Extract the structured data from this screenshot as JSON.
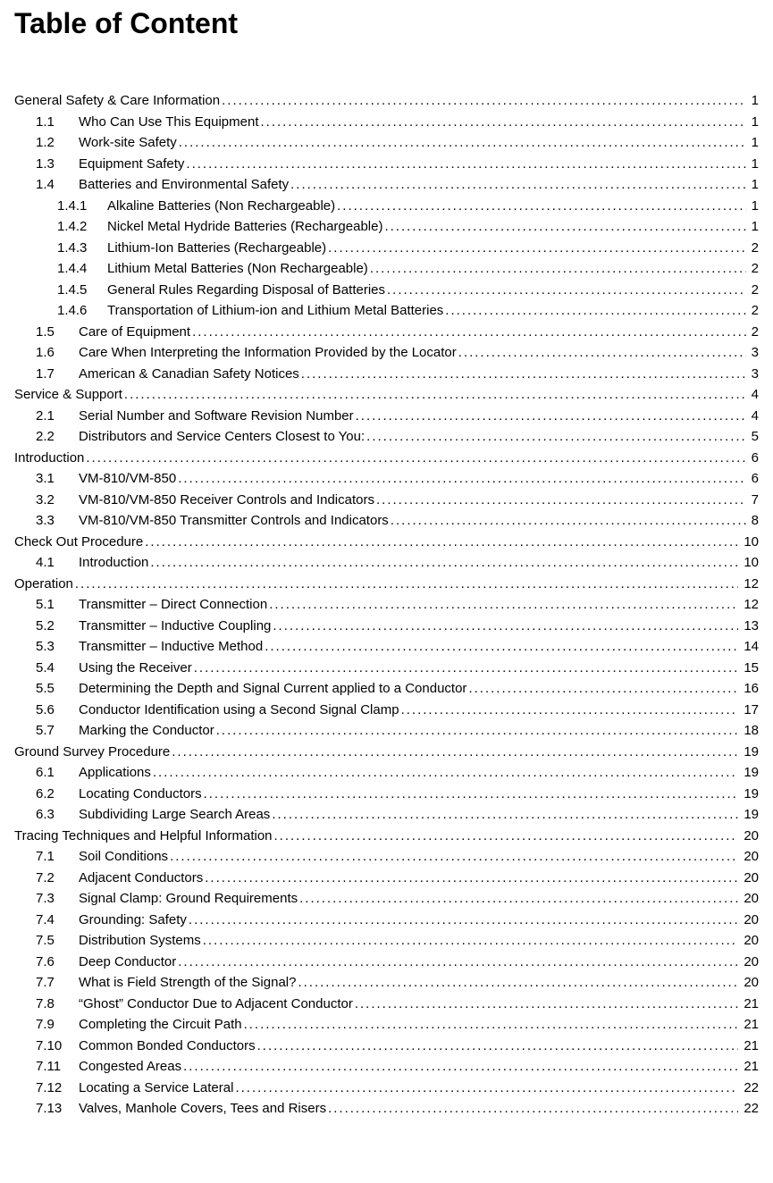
{
  "title": "Table of Content",
  "entries": [
    {
      "level": 0,
      "num": "",
      "label": "General Safety & Care Information",
      "page": "1"
    },
    {
      "level": 1,
      "num": "1.1",
      "label": "Who Can Use This Equipment",
      "page": "1"
    },
    {
      "level": 1,
      "num": "1.2",
      "label": "Work-site Safety",
      "page": "1"
    },
    {
      "level": 1,
      "num": "1.3",
      "label": "Equipment Safety",
      "page": "1"
    },
    {
      "level": 1,
      "num": "1.4",
      "label": "Batteries and Environmental Safety",
      "page": "1"
    },
    {
      "level": 2,
      "num": "1.4.1",
      "label": "Alkaline Batteries (Non Rechargeable)",
      "page": "1"
    },
    {
      "level": 2,
      "num": "1.4.2",
      "label": "Nickel Metal Hydride Batteries (Rechargeable)",
      "page": "1"
    },
    {
      "level": 2,
      "num": "1.4.3",
      "label": "Lithium-Ion Batteries (Rechargeable)",
      "page": "2"
    },
    {
      "level": 2,
      "num": "1.4.4",
      "label": "Lithium Metal Batteries (Non Rechargeable)",
      "page": "2"
    },
    {
      "level": 2,
      "num": "1.4.5",
      "label": "General Rules Regarding Disposal of Batteries",
      "page": "2"
    },
    {
      "level": 2,
      "num": "1.4.6",
      "label": "Transportation of Lithium-ion and Lithium Metal Batteries",
      "page": "2"
    },
    {
      "level": 1,
      "num": "1.5",
      "label": "Care of Equipment",
      "page": "2"
    },
    {
      "level": 1,
      "num": "1.6",
      "label": "Care When Interpreting the Information Provided by the Locator",
      "page": "3"
    },
    {
      "level": 1,
      "num": "1.7",
      "label": "American & Canadian Safety Notices",
      "page": "3"
    },
    {
      "level": 0,
      "num": "",
      "label": "Service & Support",
      "page": "4"
    },
    {
      "level": 1,
      "num": "2.1",
      "label": "Serial Number and Software Revision Number",
      "page": "4"
    },
    {
      "level": 1,
      "num": "2.2",
      "label": "Distributors and Service Centers Closest to You:",
      "page": "5"
    },
    {
      "level": 0,
      "num": "",
      "label": "Introduction",
      "page": "6"
    },
    {
      "level": 1,
      "num": "3.1",
      "label": "VM-810/VM-850",
      "page": "6"
    },
    {
      "level": 1,
      "num": "3.2",
      "label": "VM-810/VM-850 Receiver Controls and Indicators",
      "page": "7"
    },
    {
      "level": 1,
      "num": "3.3",
      "label": "VM-810/VM-850 Transmitter Controls and Indicators",
      "page": "8"
    },
    {
      "level": 0,
      "num": "",
      "label": "Check Out Procedure",
      "page": "10"
    },
    {
      "level": 1,
      "num": "4.1",
      "label": "Introduction",
      "page": "10"
    },
    {
      "level": 0,
      "num": "",
      "label": "Operation",
      "page": "12"
    },
    {
      "level": 1,
      "num": "5.1",
      "label": "Transmitter – Direct Connection",
      "page": "12"
    },
    {
      "level": 1,
      "num": "5.2",
      "label": "Transmitter – Inductive Coupling",
      "page": "13"
    },
    {
      "level": 1,
      "num": "5.3",
      "label": "Transmitter – Inductive Method",
      "page": "14"
    },
    {
      "level": 1,
      "num": "5.4",
      "label": "Using the Receiver",
      "page": "15"
    },
    {
      "level": 1,
      "num": "5.5",
      "label": "Determining the Depth and Signal Current applied to a Conductor",
      "page": "16"
    },
    {
      "level": 1,
      "num": "5.6",
      "label": "Conductor Identification using a Second Signal Clamp",
      "page": "17"
    },
    {
      "level": 1,
      "num": "5.7",
      "label": "Marking the Conductor",
      "page": "18"
    },
    {
      "level": 0,
      "num": "",
      "label": "Ground Survey Procedure",
      "page": "19"
    },
    {
      "level": 1,
      "num": "6.1",
      "label": "Applications",
      "page": "19"
    },
    {
      "level": 1,
      "num": "6.2",
      "label": "Locating Conductors",
      "page": "19"
    },
    {
      "level": 1,
      "num": "6.3",
      "label": "Subdividing Large Search Areas",
      "page": "19"
    },
    {
      "level": 0,
      "num": "",
      "label": "Tracing Techniques and Helpful Information",
      "page": "20"
    },
    {
      "level": 1,
      "num": "7.1",
      "label": "Soil Conditions",
      "page": "20"
    },
    {
      "level": 1,
      "num": "7.2",
      "label": "Adjacent Conductors",
      "page": "20"
    },
    {
      "level": 1,
      "num": "7.3",
      "label": "Signal Clamp: Ground Requirements",
      "page": "20"
    },
    {
      "level": 1,
      "num": "7.4",
      "label": "Grounding: Safety",
      "page": "20"
    },
    {
      "level": 1,
      "num": "7.5",
      "label": "Distribution Systems",
      "page": "20"
    },
    {
      "level": 1,
      "num": "7.6",
      "label": "Deep Conductor",
      "page": "20"
    },
    {
      "level": 1,
      "num": "7.7",
      "label": "What is Field Strength of the Signal?",
      "page": "20"
    },
    {
      "level": 1,
      "num": "7.8",
      "label": "“Ghost” Conductor Due to Adjacent Conductor",
      "page": "21"
    },
    {
      "level": 1,
      "num": "7.9",
      "label": "Completing the Circuit Path",
      "page": "21"
    },
    {
      "level": 1,
      "num": "7.10",
      "label": "Common Bonded Conductors",
      "page": "21"
    },
    {
      "level": 1,
      "num": "7.11",
      "label": "Congested Areas",
      "page": "21"
    },
    {
      "level": 1,
      "num": "7.12",
      "label": "Locating a Service Lateral",
      "page": "22"
    },
    {
      "level": 1,
      "num": "7.13",
      "label": "Valves, Manhole Covers, Tees and Risers",
      "page": "22"
    }
  ]
}
